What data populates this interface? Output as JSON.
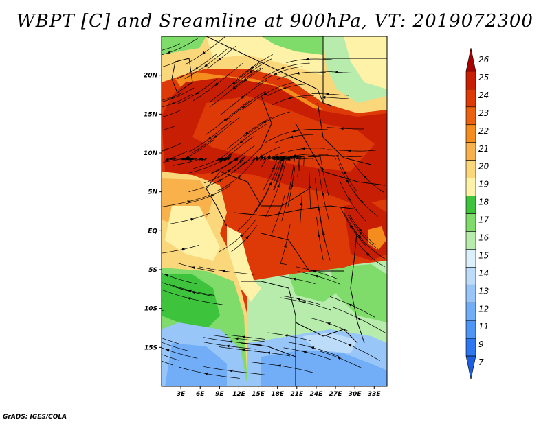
{
  "title": "WBPT [C] and Sreamline at 900hPa, VT: 2019072300",
  "credit": "GrADS: IGES/COLA",
  "chart_data": {
    "type": "heatmap",
    "variable": "Wet-bulb potential temperature",
    "units": "C",
    "level": "900hPa",
    "valid_time": "2019072300",
    "overlay": "streamlines",
    "x_ticks": [
      "3E",
      "6E",
      "9E",
      "12E",
      "15E",
      "18E",
      "21E",
      "24E",
      "27E",
      "30E",
      "33E"
    ],
    "y_ticks": [
      "20N",
      "15N",
      "10N",
      "5N",
      "EQ",
      "5S",
      "10S",
      "15S"
    ],
    "lon_range": [
      0,
      35
    ],
    "lat_range": [
      -20,
      25
    ],
    "colorbar": {
      "levels": [
        "7",
        "9",
        "11",
        "12",
        "13",
        "14",
        "15",
        "16",
        "17",
        "18",
        "19",
        "20",
        "21",
        "22",
        "23",
        "24",
        "25",
        "26"
      ],
      "colors": [
        "#1c5ee0",
        "#2d78f0",
        "#4f95f5",
        "#72aef7",
        "#98c6f8",
        "#bcdcfa",
        "#dcf0fc",
        "#b7ecac",
        "#7fdc6b",
        "#3ec43c",
        "#fdf2a8",
        "#fbd77c",
        "#f9b24b",
        "#f48d1e",
        "#ea6110",
        "#dd3a07",
        "#c81e03",
        "#a80000"
      ]
    }
  }
}
